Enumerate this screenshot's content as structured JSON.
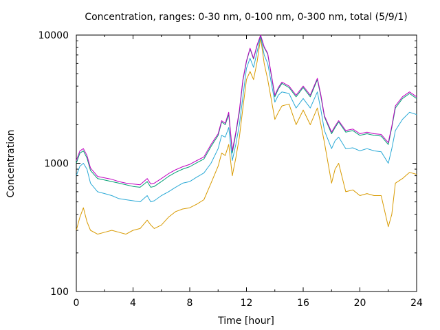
{
  "chart_data": {
    "type": "line",
    "title": "Concentration, ranges: 0-30 nm, 0-100 nm, 0-300 nm, total (5/9/1)",
    "xlabel": "Time [hour]",
    "ylabel": "Concentration",
    "xlim": [
      0,
      24
    ],
    "ylim": [
      100,
      10000
    ],
    "yscale": "log",
    "xticks": [
      0,
      4,
      8,
      12,
      16,
      20,
      24
    ],
    "xtick_labels": [
      "0",
      "4",
      "8",
      "12",
      "16",
      "20",
      "24"
    ],
    "yticks": [
      100,
      1000,
      10000
    ],
    "ytick_labels": [
      "100",
      "1000",
      "10000"
    ],
    "grid": false,
    "legend": "none",
    "x": [
      0,
      0.25,
      0.5,
      0.75,
      1,
      1.5,
      2,
      2.5,
      3,
      3.5,
      4,
      4.5,
      5,
      5.25,
      5.5,
      6,
      6.5,
      7,
      7.5,
      8,
      8.5,
      9,
      9.5,
      10,
      10.25,
      10.5,
      10.75,
      11,
      11.25,
      11.5,
      11.75,
      12,
      12.25,
      12.5,
      12.75,
      13,
      13.25,
      13.5,
      14,
      14.25,
      14.5,
      15,
      15.5,
      16,
      16.5,
      17,
      17.25,
      17.5,
      18,
      18.25,
      18.5,
      19,
      19.5,
      20,
      20.5,
      21,
      21.5,
      22,
      22.25,
      22.5,
      23,
      23.5,
      24
    ],
    "series": [
      {
        "color": "#d89a00",
        "values": [
          300,
          380,
          450,
          350,
          300,
          280,
          290,
          300,
          290,
          280,
          300,
          310,
          360,
          330,
          310,
          330,
          380,
          420,
          440,
          450,
          480,
          520,
          700,
          950,
          1200,
          1150,
          1400,
          800,
          1100,
          1600,
          2700,
          4500,
          5200,
          4500,
          6200,
          9500,
          6000,
          4500,
          2200,
          2500,
          2800,
          2900,
          2000,
          2600,
          2000,
          2700,
          2000,
          1450,
          700,
          900,
          1000,
          600,
          620,
          560,
          580,
          560,
          560,
          320,
          400,
          700,
          760,
          850,
          820
        ]
      },
      {
        "color": "#29a9d6",
        "values": [
          800,
          950,
          1000,
          900,
          700,
          600,
          580,
          560,
          530,
          520,
          510,
          500,
          560,
          500,
          510,
          560,
          600,
          650,
          700,
          720,
          780,
          840,
          1000,
          1300,
          1650,
          1600,
          1900,
          1050,
          1400,
          2000,
          3300,
          5500,
          6600,
          5600,
          7400,
          9800,
          7000,
          6000,
          3000,
          3400,
          3600,
          3500,
          2700,
          3200,
          2700,
          3600,
          2600,
          1800,
          1300,
          1500,
          1600,
          1300,
          1320,
          1250,
          1300,
          1250,
          1230,
          1000,
          1300,
          1800,
          2200,
          2500,
          2400
        ]
      },
      {
        "color": "#009e73",
        "values": [
          1000,
          1200,
          1250,
          1100,
          880,
          760,
          740,
          720,
          700,
          680,
          660,
          650,
          720,
          650,
          660,
          720,
          790,
          850,
          900,
          940,
          1010,
          1080,
          1350,
          1650,
          2100,
          2000,
          2400,
          1200,
          1700,
          2500,
          4400,
          6200,
          7800,
          6500,
          8300,
          9900,
          8000,
          7100,
          3300,
          3800,
          4200,
          3900,
          3300,
          3900,
          3300,
          4500,
          3300,
          2300,
          1700,
          1900,
          2100,
          1750,
          1800,
          1650,
          1700,
          1650,
          1630,
          1400,
          1900,
          2700,
          3200,
          3500,
          3200
        ]
      },
      {
        "color": "#c000c0",
        "values": [
          1050,
          1250,
          1300,
          1150,
          920,
          790,
          770,
          750,
          720,
          700,
          690,
          680,
          760,
          690,
          700,
          760,
          830,
          890,
          940,
          980,
          1050,
          1120,
          1400,
          1700,
          2150,
          2050,
          2500,
          1250,
          1750,
          2600,
          4500,
          6300,
          7900,
          6600,
          8400,
          10000,
          8100,
          7200,
          3400,
          3900,
          4300,
          4000,
          3400,
          4000,
          3400,
          4600,
          3400,
          2350,
          1750,
          1950,
          2150,
          1800,
          1850,
          1700,
          1750,
          1700,
          1680,
          1450,
          1950,
          2800,
          3300,
          3600,
          3300
        ]
      }
    ]
  }
}
